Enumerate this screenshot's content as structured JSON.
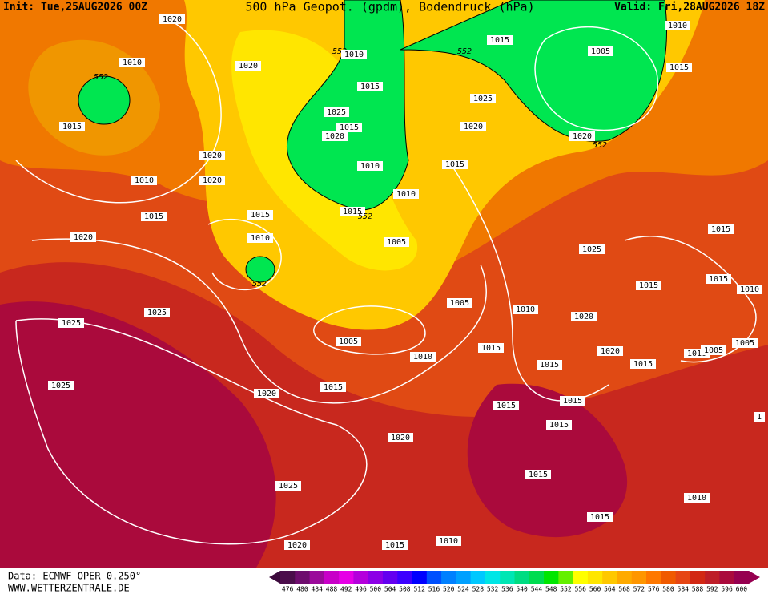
{
  "header": {
    "init": "Init: Tue,25AUG2026 00Z",
    "title": "500 hPa Geopot. (gpdm), Bodendruck (hPa)",
    "valid": "Valid: Fri,28AUG2026 18Z"
  },
  "footer": {
    "data": "Data: ECMWF OPER 0.250°",
    "site": "WWW.WETTERZENTRALE.DE"
  },
  "isobar_labels": [
    "1020",
    "1010",
    "552",
    "1015",
    "1020",
    "552",
    "1010",
    "1015",
    "552",
    "1005",
    "1010",
    "1015",
    "1015",
    "1025",
    "1025",
    "1015",
    "1020",
    "1020",
    "1020",
    "552",
    "1020",
    "1010",
    "1015",
    "1010",
    "1020",
    "1010",
    "1015",
    "552",
    "1015",
    "1015",
    "1020",
    "1010",
    "1005",
    "1025",
    "1015",
    "552",
    "1015",
    "1015",
    "1010",
    "1005",
    "1010",
    "1025",
    "1025",
    "1020",
    "1005",
    "1015",
    "1020",
    "1010",
    "1005",
    "1005",
    "1010",
    "1015",
    "1015",
    "1025",
    "1015",
    "1020",
    "1015",
    "1015",
    "1",
    "1015",
    "1020",
    "1015",
    "1025",
    "1010",
    "1015",
    "1010",
    "1015",
    "1020"
  ],
  "colorbar": {
    "labels": [
      "476",
      "480",
      "484",
      "488",
      "492",
      "496",
      "500",
      "504",
      "508",
      "512",
      "516",
      "520",
      "524",
      "528",
      "532",
      "536",
      "540",
      "544",
      "548",
      "552",
      "556",
      "560",
      "564",
      "568",
      "572",
      "576",
      "580",
      "584",
      "588",
      "592",
      "596",
      "600"
    ],
    "colors": [
      "#4b0d4b",
      "#6e0d6e",
      "#9a0a9a",
      "#c800c8",
      "#e600e6",
      "#b400dc",
      "#8c00e6",
      "#6400f0",
      "#3c00ff",
      "#0000ff",
      "#0050ff",
      "#0080ff",
      "#00a0ff",
      "#00c8ff",
      "#00e6e6",
      "#00e6b4",
      "#00dc82",
      "#00dc50",
      "#00e600",
      "#64f000",
      "#ffff00",
      "#ffe600",
      "#ffc800",
      "#ffaa00",
      "#ff9600",
      "#ff7800",
      "#f05a00",
      "#e64614",
      "#d22814",
      "#be1e28",
      "#aa0a3c",
      "#960050"
    ]
  }
}
